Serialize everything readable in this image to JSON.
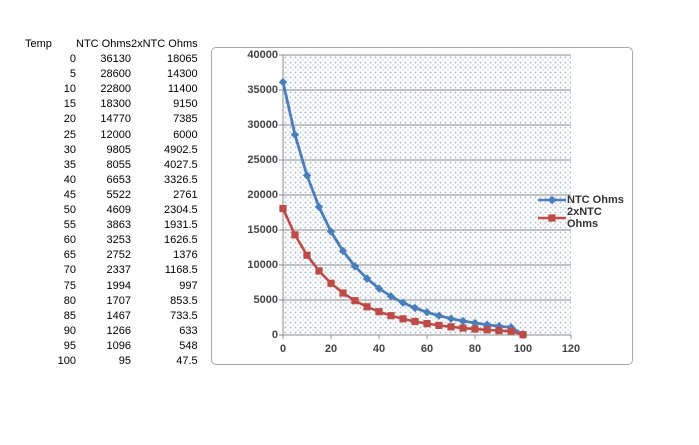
{
  "table": {
    "headers": [
      "Temp",
      "NTC Ohms",
      "2xNTC Ohms"
    ],
    "rows": [
      [
        0,
        36130,
        18065
      ],
      [
        5,
        28600,
        14300
      ],
      [
        10,
        22800,
        11400
      ],
      [
        15,
        18300,
        9150
      ],
      [
        20,
        14770,
        7385
      ],
      [
        25,
        12000,
        6000
      ],
      [
        30,
        9805,
        4902.5
      ],
      [
        35,
        8055,
        4027.5
      ],
      [
        40,
        6653,
        3326.5
      ],
      [
        45,
        5522,
        2761
      ],
      [
        50,
        4609,
        2304.5
      ],
      [
        55,
        3863,
        1931.5
      ],
      [
        60,
        3253,
        1626.5
      ],
      [
        65,
        2752,
        1376
      ],
      [
        70,
        2337,
        1168.5
      ],
      [
        75,
        1994,
        997
      ],
      [
        80,
        1707,
        853.5
      ],
      [
        85,
        1467,
        733.5
      ],
      [
        90,
        1266,
        633
      ],
      [
        95,
        1096,
        548
      ],
      [
        100,
        95,
        47.5
      ]
    ]
  },
  "chart_data": {
    "type": "line",
    "title": "",
    "xlabel": "",
    "ylabel": "",
    "x": [
      0,
      5,
      10,
      15,
      20,
      25,
      30,
      35,
      40,
      45,
      50,
      55,
      60,
      65,
      70,
      75,
      80,
      85,
      90,
      95,
      100
    ],
    "series": [
      {
        "name": "NTC Ohms",
        "color": "#4a7eba",
        "marker": "diamond",
        "values": [
          36130,
          28600,
          22800,
          18300,
          14770,
          12000,
          9805,
          8055,
          6653,
          5522,
          4609,
          3863,
          3253,
          2752,
          2337,
          1994,
          1707,
          1467,
          1266,
          1096,
          95
        ]
      },
      {
        "name": "2xNTC Ohms",
        "color": "#be4b48",
        "marker": "square",
        "values": [
          18065,
          14300,
          11400,
          9150,
          7385,
          6000,
          4902.5,
          4027.5,
          3326.5,
          2761,
          2304.5,
          1931.5,
          1626.5,
          1376,
          1168.5,
          997,
          853.5,
          733.5,
          633,
          548,
          47.5
        ]
      }
    ],
    "xlim": [
      0,
      120
    ],
    "ylim": [
      0,
      40000
    ],
    "x_ticks": [
      0,
      20,
      40,
      60,
      80,
      100,
      120
    ],
    "y_ticks": [
      0,
      5000,
      10000,
      15000,
      20000,
      25000,
      30000,
      35000,
      40000
    ],
    "grid": "horizontal",
    "legend_position": "right",
    "plot_background": "dotted-pattern",
    "colors": {
      "gridline": "#8c8c8c",
      "axis": "#8c8c8c",
      "tick_label": "#444444",
      "chart_border": "#a6a6a6",
      "plot_dot": "#b6c0cc"
    }
  }
}
